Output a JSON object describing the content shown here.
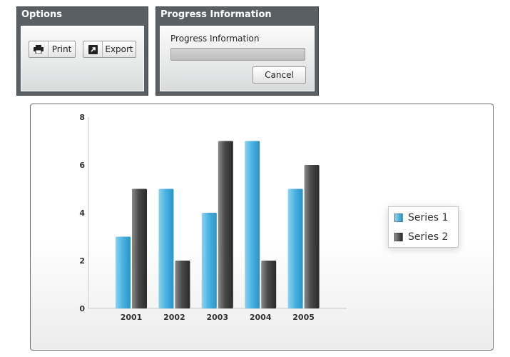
{
  "options_panel": {
    "title": "Options",
    "print_label": "Print",
    "export_label": "Export"
  },
  "progress_panel": {
    "title": "Progress Information",
    "label": "Progress Information",
    "progress": 0,
    "cancel_label": "Cancel"
  },
  "colors": {
    "series1": "#3aa9d9",
    "series2": "#3b3b3b"
  },
  "chart_data": {
    "type": "bar",
    "categories": [
      "2001",
      "2002",
      "2003",
      "2004",
      "2005"
    ],
    "series": [
      {
        "name": "Series 1",
        "values": [
          3,
          5,
          4,
          7,
          5
        ]
      },
      {
        "name": "Series 2",
        "values": [
          5,
          2,
          7,
          2,
          6
        ]
      }
    ],
    "yticks": [
      "0",
      "2",
      "4",
      "6",
      "8"
    ],
    "ylim": [
      0,
      8
    ],
    "legend_position": "right"
  }
}
